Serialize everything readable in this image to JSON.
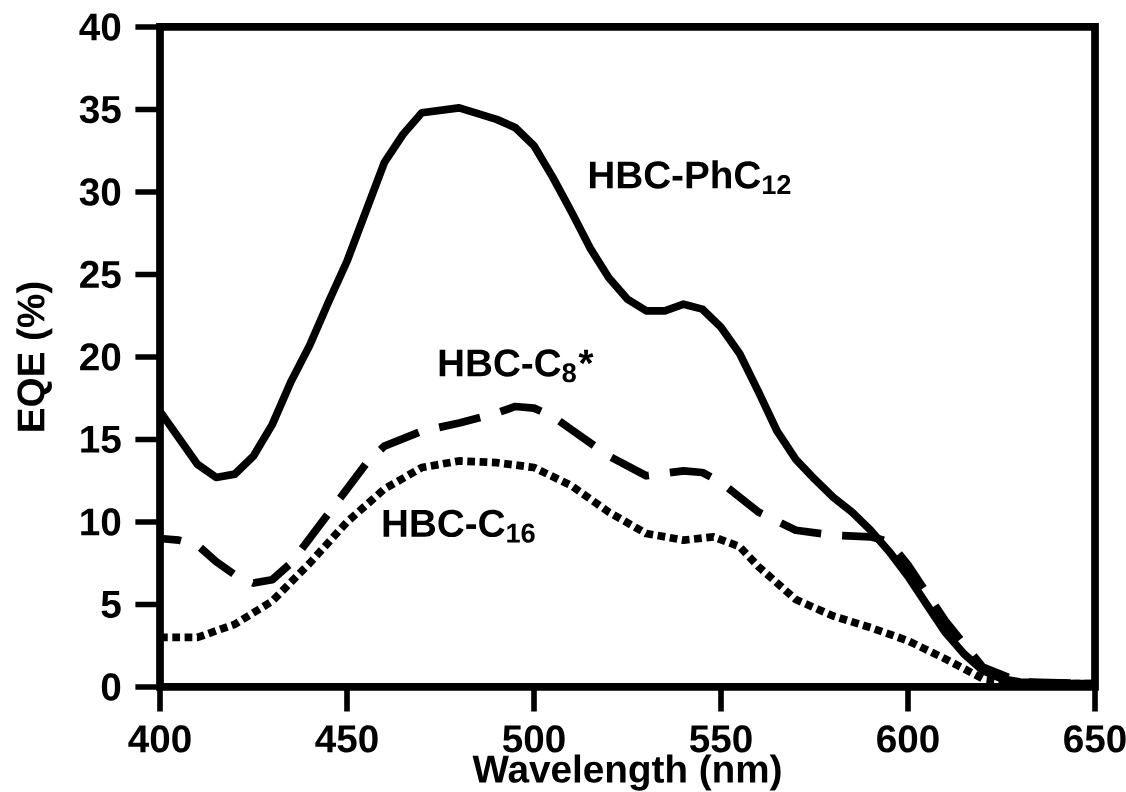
{
  "chart_data": {
    "type": "line",
    "xlabel": "Wavelength (nm)",
    "ylabel": "EQE (%)",
    "xlim": [
      400,
      650
    ],
    "ylim": [
      0,
      40
    ],
    "xticks": [
      400,
      450,
      500,
      550,
      600,
      650
    ],
    "yticks": [
      0,
      5,
      10,
      15,
      20,
      25,
      30,
      35,
      40
    ],
    "grid": false,
    "legend": false,
    "marker": "none",
    "series": [
      {
        "name": "HBC-PhC$_{12}$",
        "color": "#000000",
        "line_style": "solid",
        "x": [
          400,
          410,
          415,
          420,
          425,
          430,
          435,
          440,
          445,
          450,
          455,
          460,
          465,
          470,
          480,
          490,
          495,
          500,
          505,
          510,
          515,
          520,
          525,
          530,
          535,
          540,
          545,
          550,
          555,
          560,
          565,
          570,
          575,
          580,
          585,
          590,
          595,
          600,
          605,
          610,
          615,
          620,
          625,
          630,
          640,
          650
        ],
        "values": [
          16.7,
          13.5,
          12.7,
          12.9,
          14,
          15.9,
          18.5,
          20.7,
          23.3,
          25.8,
          28.8,
          31.8,
          33.5,
          34.8,
          35.1,
          34.4,
          33.9,
          32.8,
          30.9,
          28.8,
          26.6,
          24.8,
          23.5,
          22.8,
          22.8,
          23.2,
          22.9,
          21.8,
          20.2,
          17.9,
          15.5,
          13.8,
          12.6,
          11.5,
          10.6,
          9.5,
          8.2,
          6.7,
          5,
          3.3,
          2,
          1,
          0.5,
          0.3,
          0.2,
          0.2
        ]
      },
      {
        "name": "HBC-C$_{8}$*",
        "color": "#000000",
        "line_style": "dashed",
        "x": [
          400,
          405,
          410,
          415,
          420,
          425,
          430,
          435,
          440,
          445,
          450,
          455,
          460,
          470,
          480,
          490,
          495,
          500,
          505,
          510,
          520,
          530,
          540,
          545,
          550,
          560,
          570,
          580,
          590,
          595,
          600,
          610,
          620,
          630,
          650
        ],
        "values": [
          9,
          8.9,
          8.6,
          7.6,
          6.8,
          6.3,
          6.5,
          7.5,
          9,
          10.5,
          12,
          13.5,
          14.6,
          15.5,
          16,
          16.6,
          17,
          16.9,
          16.4,
          15.6,
          14,
          12.8,
          13.1,
          13,
          12.4,
          10.6,
          9.5,
          9.2,
          9.1,
          8.8,
          7.4,
          4,
          1.2,
          0.3,
          0.2
        ]
      },
      {
        "name": "HBC-C$_{16}$",
        "color": "#000000",
        "line_style": "dotted",
        "x": [
          400,
          410,
          420,
          430,
          440,
          450,
          460,
          470,
          480,
          490,
          500,
          510,
          520,
          530,
          540,
          548,
          555,
          560,
          570,
          580,
          590,
          600,
          610,
          620,
          630,
          650
        ],
        "values": [
          3,
          3,
          3.8,
          5.2,
          7.5,
          10,
          12,
          13.3,
          13.7,
          13.6,
          13.3,
          12.2,
          10.6,
          9.3,
          8.9,
          9.1,
          8.5,
          7.3,
          5.3,
          4.3,
          3.6,
          2.8,
          1.7,
          0.5,
          0.2,
          0.2
        ]
      }
    ]
  }
}
